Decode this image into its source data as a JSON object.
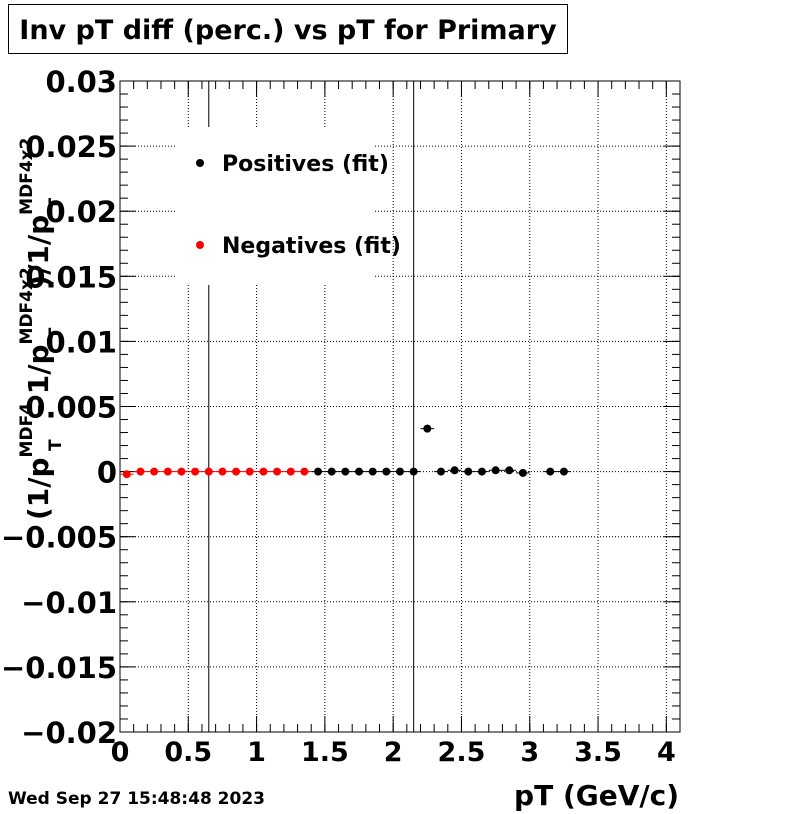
{
  "header": {
    "title": "Inv pT diff (perc.) vs pT for Primary"
  },
  "footer": {
    "timestamp": "Wed Sep 27 15:48:48 2023"
  },
  "chart_data": {
    "type": "scatter",
    "title": "Inv pT diff (perc.) vs pT for Primary",
    "xlabel": "pT (GeV/c)",
    "ylabel": "(1/pT^MDF4 - 1/pT^MDF4x2)/1/pT^MDF4x2",
    "xlim": [
      0,
      4.1
    ],
    "ylim": [
      -0.02,
      0.03
    ],
    "xticks": [
      "0",
      "0.5",
      "1",
      "1.5",
      "2",
      "2.5",
      "3",
      "3.5",
      "4"
    ],
    "yticks": [
      "0.03",
      "0.025",
      "0.02",
      "0.015",
      "0.01",
      "0.005",
      "0",
      "−0.005",
      "−0.01",
      "−0.015",
      "−0.02"
    ],
    "grid": true,
    "legend_position": "top-left",
    "vertical_lines_x": [
      0.65,
      2.15
    ],
    "series": [
      {
        "name": "Positives (fit)",
        "color": "#000000",
        "x": [
          1.45,
          1.55,
          1.65,
          1.75,
          1.85,
          1.95,
          2.05,
          2.15,
          2.25,
          2.35,
          2.45,
          2.55,
          2.65,
          2.75,
          2.85,
          2.95,
          3.15,
          3.25
        ],
        "y": [
          0.0,
          0.0,
          0.0,
          0.0,
          0.0,
          0.0,
          0.0,
          0.0,
          0.0033,
          0.0,
          0.0001,
          0.0,
          0.0,
          0.0001,
          0.0001,
          -0.0001,
          0.0,
          0.0
        ]
      },
      {
        "name": "Negatives (fit)",
        "color": "#ff0000",
        "x": [
          0.05,
          0.15,
          0.25,
          0.35,
          0.45,
          0.55,
          0.65,
          0.75,
          0.85,
          0.95,
          1.05,
          1.15,
          1.25,
          1.35
        ],
        "y": [
          -0.0002,
          0.0,
          0.0,
          0.0,
          0.0,
          0.0,
          0.0,
          0.0,
          0.0,
          0.0,
          0.0,
          0.0,
          0.0,
          0.0
        ]
      }
    ]
  }
}
